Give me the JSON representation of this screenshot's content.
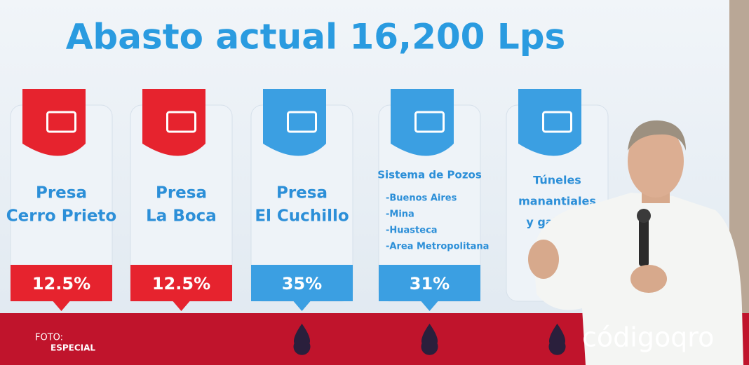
{
  "slide": {
    "title": "Abasto actual 16,200 Lps",
    "cards": [
      {
        "lines": [
          "Presa",
          "Cerro Prieto"
        ],
        "percent": "12.5%",
        "color": "#e6232e"
      },
      {
        "lines": [
          "Presa",
          "La Boca"
        ],
        "percent": "12.5%",
        "color": "#e6232e"
      },
      {
        "lines": [
          "Presa",
          "El Cuchillo"
        ],
        "percent": "35%",
        "color": "#3b9fe2"
      },
      {
        "lines": [
          "Sistema de Pozos"
        ],
        "items": [
          "-Buenos Aires",
          "-Mina",
          "-Huasteca",
          "-Area Metropolitana"
        ],
        "percent": "31%",
        "color": "#3b9fe2"
      },
      {
        "lines": [
          "Túneles",
          "manantiales",
          "y galerías"
        ],
        "color": "#3b9fe2"
      }
    ]
  },
  "credit": {
    "label": "FOTO:",
    "source": "ESPECIAL"
  },
  "logo": "códigoqro"
}
